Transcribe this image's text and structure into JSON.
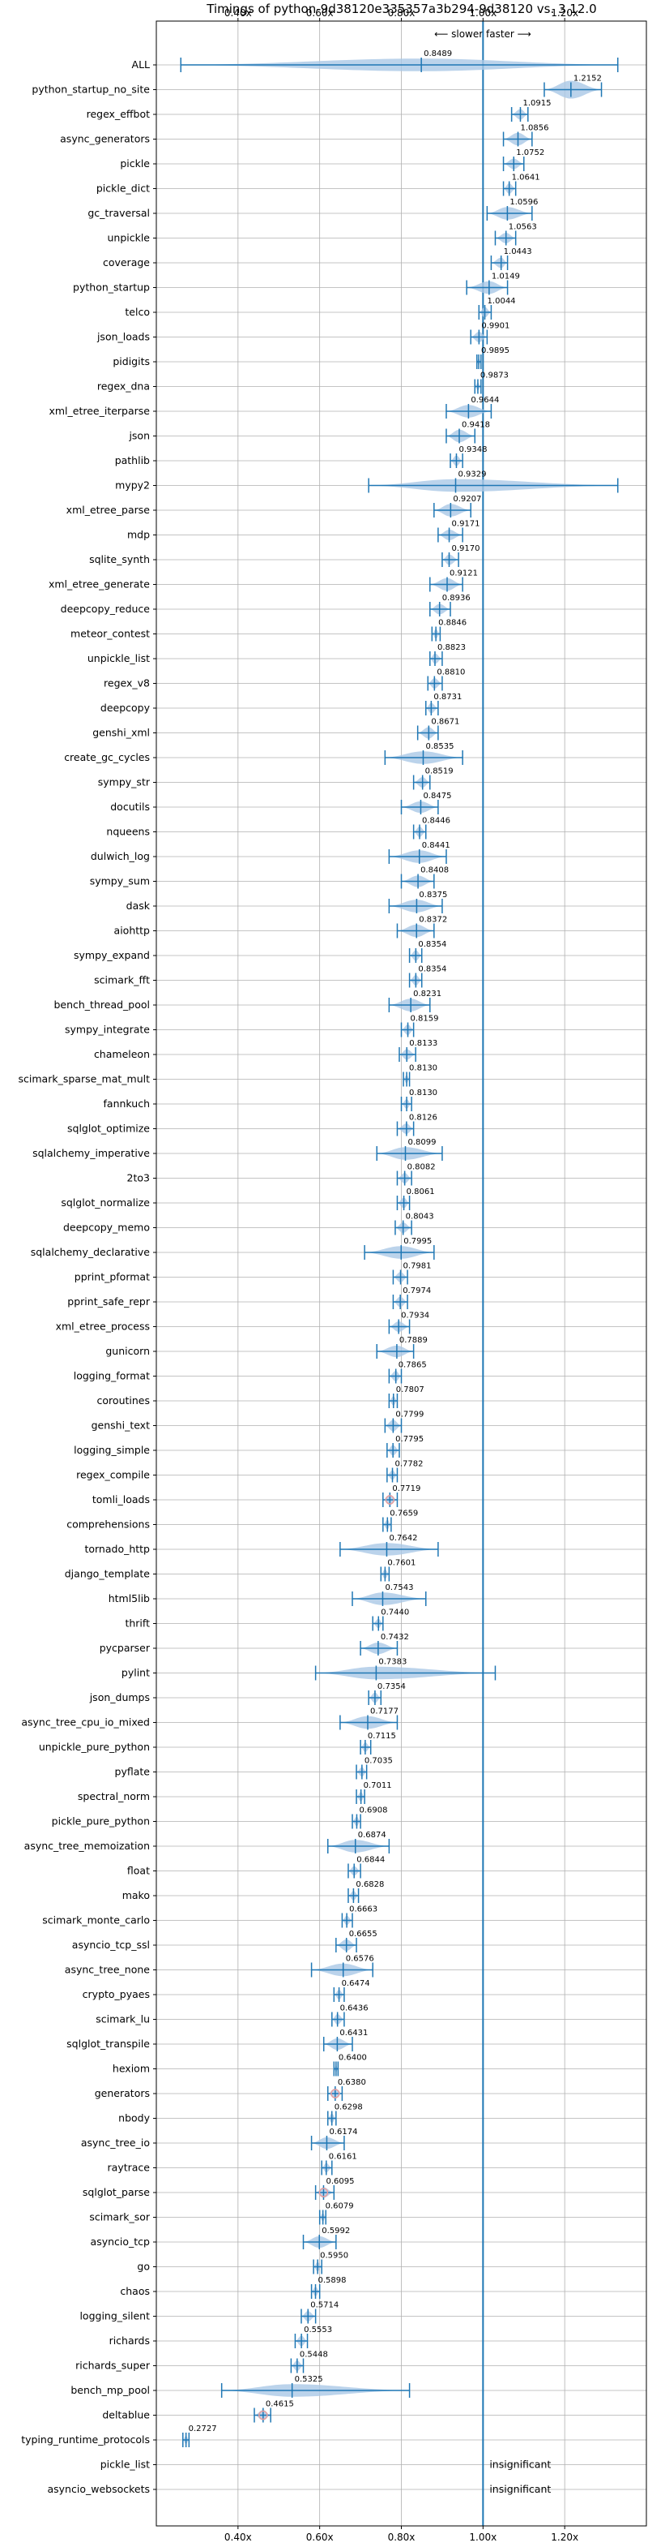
{
  "chart_data": {
    "type": "violin",
    "title": "Timings of python-9d38120e335357a3b294-9d38120 vs. 3.12.0",
    "direction_label": "⟵ slower   faster ⟶",
    "xlim": [
      0.2,
      1.4
    ],
    "xticks": [
      0.4,
      0.6,
      0.8,
      1.0,
      1.2
    ],
    "xtick_labels": [
      "0.40x",
      "0.60x",
      "0.80x",
      "1.00x",
      "1.20x"
    ],
    "grid": true,
    "reference_line": 1.0,
    "colors": {
      "violin": "#aac8e6",
      "line": "#1f77b4",
      "mean_marker": "#e8a0a0"
    },
    "insignificant_label": "insignificant",
    "benchmarks": [
      {
        "name": "ALL",
        "value": 0.8489,
        "label": "0.8489",
        "min": 0.26,
        "max": 1.33,
        "width": 0.6
      },
      {
        "name": "python_startup_no_site",
        "value": 1.2152,
        "label": "1.2152",
        "min": 1.15,
        "max": 1.29,
        "width": 0.85
      },
      {
        "name": "regex_effbot",
        "value": 1.0915,
        "label": "1.0915",
        "min": 1.07,
        "max": 1.11,
        "width": 0.5
      },
      {
        "name": "async_generators",
        "value": 1.0856,
        "label": "1.0856",
        "min": 1.05,
        "max": 1.12,
        "width": 0.6
      },
      {
        "name": "pickle",
        "value": 1.0752,
        "label": "1.0752",
        "min": 1.05,
        "max": 1.1,
        "width": 0.5
      },
      {
        "name": "pickle_dict",
        "value": 1.0641,
        "label": "1.0641",
        "min": 1.05,
        "max": 1.08,
        "width": 0.5
      },
      {
        "name": "gc_traversal",
        "value": 1.0596,
        "label": "1.0596",
        "min": 1.01,
        "max": 1.12,
        "width": 0.6
      },
      {
        "name": "unpickle",
        "value": 1.0563,
        "label": "1.0563",
        "min": 1.03,
        "max": 1.08,
        "width": 0.5
      },
      {
        "name": "coverage",
        "value": 1.0443,
        "label": "1.0443",
        "min": 1.02,
        "max": 1.06,
        "width": 0.5
      },
      {
        "name": "python_startup",
        "value": 1.0149,
        "label": "1.0149",
        "min": 0.96,
        "max": 1.06,
        "width": 0.6
      },
      {
        "name": "telco",
        "value": 1.0044,
        "label": "1.0044",
        "min": 0.99,
        "max": 1.02,
        "width": 0.5
      },
      {
        "name": "json_loads",
        "value": 0.9901,
        "label": "0.9901",
        "min": 0.97,
        "max": 1.01,
        "width": 0.5
      },
      {
        "name": "pidigits",
        "value": 0.9895,
        "label": "0.9895",
        "min": 0.985,
        "max": 0.995,
        "width": 0.35
      },
      {
        "name": "regex_dna",
        "value": 0.9873,
        "label": "0.9873",
        "min": 0.98,
        "max": 0.995,
        "width": 0.4
      },
      {
        "name": "xml_etree_iterparse",
        "value": 0.9644,
        "label": "0.9644",
        "min": 0.91,
        "max": 1.02,
        "width": 0.6
      },
      {
        "name": "json",
        "value": 0.9418,
        "label": "0.9418",
        "min": 0.91,
        "max": 0.98,
        "width": 0.6
      },
      {
        "name": "pathlib",
        "value": 0.9348,
        "label": "0.9348",
        "min": 0.92,
        "max": 0.95,
        "width": 0.5
      },
      {
        "name": "mypy2",
        "value": 0.9329,
        "label": "0.9329",
        "min": 0.72,
        "max": 1.33,
        "width": 0.6
      },
      {
        "name": "xml_etree_parse",
        "value": 0.9207,
        "label": "0.9207",
        "min": 0.88,
        "max": 0.97,
        "width": 0.6
      },
      {
        "name": "mdp",
        "value": 0.9171,
        "label": "0.9171",
        "min": 0.89,
        "max": 0.95,
        "width": 0.5
      },
      {
        "name": "sqlite_synth",
        "value": 0.917,
        "label": "0.9170",
        "min": 0.9,
        "max": 0.94,
        "width": 0.5
      },
      {
        "name": "xml_etree_generate",
        "value": 0.9121,
        "label": "0.9121",
        "min": 0.87,
        "max": 0.95,
        "width": 0.6
      },
      {
        "name": "deepcopy_reduce",
        "value": 0.8936,
        "label": "0.8936",
        "min": 0.87,
        "max": 0.92,
        "width": 0.5
      },
      {
        "name": "meteor_contest",
        "value": 0.8846,
        "label": "0.8846",
        "min": 0.875,
        "max": 0.895,
        "width": 0.45
      },
      {
        "name": "unpickle_list",
        "value": 0.8823,
        "label": "0.8823",
        "min": 0.87,
        "max": 0.9,
        "width": 0.5
      },
      {
        "name": "regex_v8",
        "value": 0.881,
        "label": "0.8810",
        "min": 0.865,
        "max": 0.9,
        "width": 0.5
      },
      {
        "name": "deepcopy",
        "value": 0.8731,
        "label": "0.8731",
        "min": 0.86,
        "max": 0.89,
        "width": 0.5
      },
      {
        "name": "genshi_xml",
        "value": 0.8671,
        "label": "0.8671",
        "min": 0.84,
        "max": 0.89,
        "width": 0.55
      },
      {
        "name": "create_gc_cycles",
        "value": 0.8535,
        "label": "0.8535",
        "min": 0.76,
        "max": 0.95,
        "width": 0.6
      },
      {
        "name": "sympy_str",
        "value": 0.8519,
        "label": "0.8519",
        "min": 0.83,
        "max": 0.87,
        "width": 0.5
      },
      {
        "name": "docutils",
        "value": 0.8475,
        "label": "0.8475",
        "min": 0.8,
        "max": 0.89,
        "width": 0.55
      },
      {
        "name": "nqueens",
        "value": 0.8446,
        "label": "0.8446",
        "min": 0.83,
        "max": 0.86,
        "width": 0.5
      },
      {
        "name": "dulwich_log",
        "value": 0.8441,
        "label": "0.8441",
        "min": 0.77,
        "max": 0.91,
        "width": 0.6
      },
      {
        "name": "sympy_sum",
        "value": 0.8408,
        "label": "0.8408",
        "min": 0.8,
        "max": 0.88,
        "width": 0.55
      },
      {
        "name": "dask",
        "value": 0.8375,
        "label": "0.8375",
        "min": 0.77,
        "max": 0.9,
        "width": 0.6
      },
      {
        "name": "aiohttp",
        "value": 0.8372,
        "label": "0.8372",
        "min": 0.79,
        "max": 0.88,
        "width": 0.6
      },
      {
        "name": "sympy_expand",
        "value": 0.8354,
        "label": "0.8354",
        "min": 0.82,
        "max": 0.85,
        "width": 0.5
      },
      {
        "name": "scimark_fft",
        "value": 0.8354,
        "label": "0.8354",
        "min": 0.82,
        "max": 0.85,
        "width": 0.5
      },
      {
        "name": "bench_thread_pool",
        "value": 0.8231,
        "label": "0.8231",
        "min": 0.77,
        "max": 0.87,
        "width": 0.6
      },
      {
        "name": "sympy_integrate",
        "value": 0.8159,
        "label": "0.8159",
        "min": 0.8,
        "max": 0.83,
        "width": 0.5
      },
      {
        "name": "chameleon",
        "value": 0.8133,
        "label": "0.8133",
        "min": 0.795,
        "max": 0.835,
        "width": 0.5
      },
      {
        "name": "scimark_sparse_mat_mult",
        "value": 0.813,
        "label": "0.8130",
        "min": 0.805,
        "max": 0.82,
        "width": 0.4
      },
      {
        "name": "fannkuch",
        "value": 0.813,
        "label": "0.8130",
        "min": 0.8,
        "max": 0.825,
        "width": 0.45
      },
      {
        "name": "sqlglot_optimize",
        "value": 0.8126,
        "label": "0.8126",
        "min": 0.79,
        "max": 0.83,
        "width": 0.5
      },
      {
        "name": "sqlalchemy_imperative",
        "value": 0.8099,
        "label": "0.8099",
        "min": 0.74,
        "max": 0.9,
        "width": 0.6
      },
      {
        "name": "2to3",
        "value": 0.8082,
        "label": "0.8082",
        "min": 0.79,
        "max": 0.825,
        "width": 0.5
      },
      {
        "name": "sqlglot_normalize",
        "value": 0.8061,
        "label": "0.8061",
        "min": 0.79,
        "max": 0.82,
        "width": 0.5
      },
      {
        "name": "deepcopy_memo",
        "value": 0.8043,
        "label": "0.8043",
        "min": 0.785,
        "max": 0.825,
        "width": 0.5
      },
      {
        "name": "sqlalchemy_declarative",
        "value": 0.7995,
        "label": "0.7995",
        "min": 0.71,
        "max": 0.88,
        "width": 0.6
      },
      {
        "name": "pprint_pformat",
        "value": 0.7981,
        "label": "0.7981",
        "min": 0.78,
        "max": 0.815,
        "width": 0.5
      },
      {
        "name": "pprint_safe_repr",
        "value": 0.7974,
        "label": "0.7974",
        "min": 0.78,
        "max": 0.815,
        "width": 0.5
      },
      {
        "name": "xml_etree_process",
        "value": 0.7934,
        "label": "0.7934",
        "min": 0.77,
        "max": 0.82,
        "width": 0.5
      },
      {
        "name": "gunicorn",
        "value": 0.7889,
        "label": "0.7889",
        "min": 0.74,
        "max": 0.83,
        "width": 0.55
      },
      {
        "name": "logging_format",
        "value": 0.7865,
        "label": "0.7865",
        "min": 0.77,
        "max": 0.8,
        "width": 0.5
      },
      {
        "name": "coroutines",
        "value": 0.7807,
        "label": "0.7807",
        "min": 0.77,
        "max": 0.79,
        "width": 0.45
      },
      {
        "name": "genshi_text",
        "value": 0.7799,
        "label": "0.7799",
        "min": 0.76,
        "max": 0.8,
        "width": 0.55
      },
      {
        "name": "logging_simple",
        "value": 0.7795,
        "label": "0.7795",
        "min": 0.765,
        "max": 0.795,
        "width": 0.5
      },
      {
        "name": "regex_compile",
        "value": 0.7782,
        "label": "0.7782",
        "min": 0.765,
        "max": 0.79,
        "width": 0.45
      },
      {
        "name": "tomli_loads",
        "value": 0.7719,
        "label": "0.7719",
        "min": 0.755,
        "max": 0.79,
        "width": 0.5,
        "mean_marker": true
      },
      {
        "name": "comprehensions",
        "value": 0.7659,
        "label": "0.7659",
        "min": 0.755,
        "max": 0.775,
        "width": 0.45
      },
      {
        "name": "tornado_http",
        "value": 0.7642,
        "label": "0.7642",
        "min": 0.65,
        "max": 0.89,
        "width": 0.6
      },
      {
        "name": "django_template",
        "value": 0.7601,
        "label": "0.7601",
        "min": 0.75,
        "max": 0.77,
        "width": 0.45
      },
      {
        "name": "html5lib",
        "value": 0.7543,
        "label": "0.7543",
        "min": 0.68,
        "max": 0.86,
        "width": 0.6
      },
      {
        "name": "thrift",
        "value": 0.744,
        "label": "0.7440",
        "min": 0.73,
        "max": 0.755,
        "width": 0.45
      },
      {
        "name": "pycparser",
        "value": 0.7432,
        "label": "0.7432",
        "min": 0.7,
        "max": 0.79,
        "width": 0.55
      },
      {
        "name": "pylint",
        "value": 0.7383,
        "label": "0.7383",
        "min": 0.59,
        "max": 1.03,
        "width": 0.6
      },
      {
        "name": "json_dumps",
        "value": 0.7354,
        "label": "0.7354",
        "min": 0.72,
        "max": 0.75,
        "width": 0.5
      },
      {
        "name": "async_tree_cpu_io_mixed",
        "value": 0.7177,
        "label": "0.7177",
        "min": 0.65,
        "max": 0.79,
        "width": 0.6
      },
      {
        "name": "unpickle_pure_python",
        "value": 0.7115,
        "label": "0.7115",
        "min": 0.7,
        "max": 0.725,
        "width": 0.45
      },
      {
        "name": "pyflate",
        "value": 0.7035,
        "label": "0.7035",
        "min": 0.69,
        "max": 0.715,
        "width": 0.45
      },
      {
        "name": "spectral_norm",
        "value": 0.7011,
        "label": "0.7011",
        "min": 0.69,
        "max": 0.71,
        "width": 0.45
      },
      {
        "name": "pickle_pure_python",
        "value": 0.6908,
        "label": "0.6908",
        "min": 0.68,
        "max": 0.7,
        "width": 0.45
      },
      {
        "name": "async_tree_memoization",
        "value": 0.6874,
        "label": "0.6874",
        "min": 0.62,
        "max": 0.77,
        "width": 0.6
      },
      {
        "name": "float",
        "value": 0.6844,
        "label": "0.6844",
        "min": 0.67,
        "max": 0.7,
        "width": 0.45
      },
      {
        "name": "mako",
        "value": 0.6828,
        "label": "0.6828",
        "min": 0.67,
        "max": 0.695,
        "width": 0.45
      },
      {
        "name": "scimark_monte_carlo",
        "value": 0.6663,
        "label": "0.6663",
        "min": 0.655,
        "max": 0.68,
        "width": 0.45
      },
      {
        "name": "asyncio_tcp_ssl",
        "value": 0.6655,
        "label": "0.6655",
        "min": 0.64,
        "max": 0.69,
        "width": 0.55
      },
      {
        "name": "async_tree_none",
        "value": 0.6576,
        "label": "0.6576",
        "min": 0.58,
        "max": 0.73,
        "width": 0.6
      },
      {
        "name": "crypto_pyaes",
        "value": 0.6474,
        "label": "0.6474",
        "min": 0.635,
        "max": 0.66,
        "width": 0.45
      },
      {
        "name": "scimark_lu",
        "value": 0.6436,
        "label": "0.6436",
        "min": 0.63,
        "max": 0.66,
        "width": 0.5
      },
      {
        "name": "sqlglot_transpile",
        "value": 0.6431,
        "label": "0.6431",
        "min": 0.61,
        "max": 0.68,
        "width": 0.55
      },
      {
        "name": "hexiom",
        "value": 0.64,
        "label": "0.6400",
        "min": 0.635,
        "max": 0.645,
        "width": 0.35
      },
      {
        "name": "generators",
        "value": 0.638,
        "label": "0.6380",
        "min": 0.62,
        "max": 0.655,
        "width": 0.5,
        "mean_marker": true
      },
      {
        "name": "nbody",
        "value": 0.6298,
        "label": "0.6298",
        "min": 0.62,
        "max": 0.64,
        "width": 0.45
      },
      {
        "name": "async_tree_io",
        "value": 0.6174,
        "label": "0.6174",
        "min": 0.58,
        "max": 0.66,
        "width": 0.55
      },
      {
        "name": "raytrace",
        "value": 0.6161,
        "label": "0.6161",
        "min": 0.605,
        "max": 0.63,
        "width": 0.45
      },
      {
        "name": "sqlglot_parse",
        "value": 0.6095,
        "label": "0.6095",
        "min": 0.59,
        "max": 0.635,
        "width": 0.5,
        "mean_marker": true
      },
      {
        "name": "scimark_sor",
        "value": 0.6079,
        "label": "0.6079",
        "min": 0.6,
        "max": 0.615,
        "width": 0.4
      },
      {
        "name": "asyncio_tcp",
        "value": 0.5992,
        "label": "0.5992",
        "min": 0.56,
        "max": 0.64,
        "width": 0.55
      },
      {
        "name": "go",
        "value": 0.595,
        "label": "0.5950",
        "min": 0.585,
        "max": 0.605,
        "width": 0.45
      },
      {
        "name": "chaos",
        "value": 0.5898,
        "label": "0.5898",
        "min": 0.58,
        "max": 0.6,
        "width": 0.45
      },
      {
        "name": "logging_silent",
        "value": 0.5714,
        "label": "0.5714",
        "min": 0.555,
        "max": 0.59,
        "width": 0.5
      },
      {
        "name": "richards",
        "value": 0.5553,
        "label": "0.5553",
        "min": 0.54,
        "max": 0.57,
        "width": 0.5
      },
      {
        "name": "richards_super",
        "value": 0.5448,
        "label": "0.5448",
        "min": 0.53,
        "max": 0.56,
        "width": 0.5
      },
      {
        "name": "bench_mp_pool",
        "value": 0.5325,
        "label": "0.5325",
        "min": 0.36,
        "max": 0.82,
        "width": 0.6
      },
      {
        "name": "deltablue",
        "value": 0.4615,
        "label": "0.4615",
        "min": 0.44,
        "max": 0.48,
        "width": 0.5,
        "mean_marker": true
      },
      {
        "name": "typing_runtime_protocols",
        "value": 0.2727,
        "label": "0.2727",
        "min": 0.265,
        "max": 0.28,
        "width": 0.4
      },
      {
        "name": "pickle_list",
        "value": null,
        "label": "",
        "insignificant": true
      },
      {
        "name": "asyncio_websockets",
        "value": null,
        "label": "",
        "insignificant": true
      }
    ]
  }
}
